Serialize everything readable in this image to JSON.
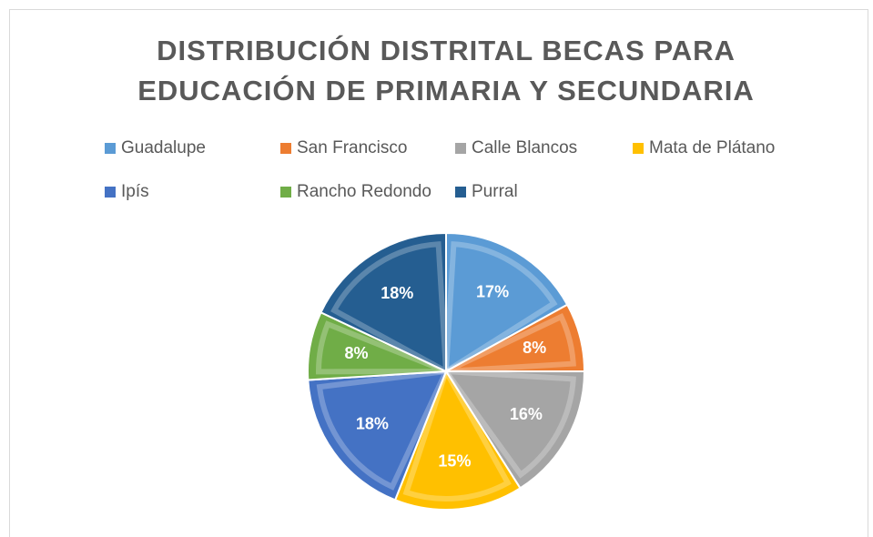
{
  "chart_data": {
    "type": "pie",
    "title": "DISTRIBUCIÓN DISTRITAL BECAS PARA EDUCACIÓN DE PRIMARIA Y SECUNDARIA",
    "categories": [
      "Guadalupe",
      "San Francisco",
      "Calle Blancos",
      "Mata de Plátano",
      "Ipís",
      "Rancho Redondo",
      "Purral"
    ],
    "values": [
      17,
      8,
      16,
      15,
      18,
      8,
      18
    ],
    "value_labels": [
      "17%",
      "8%",
      "16%",
      "15%",
      "18%",
      "8%",
      "18%"
    ],
    "colors": [
      "#5b9bd5",
      "#ed7d31",
      "#a5a5a5",
      "#ffc000",
      "#4472c4",
      "#70ad47",
      "#255e91"
    ],
    "legend": "top"
  }
}
